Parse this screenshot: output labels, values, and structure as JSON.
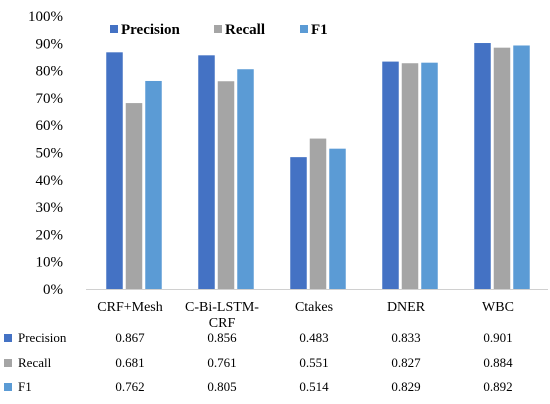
{
  "chart_data": {
    "type": "bar",
    "categories": [
      "CRF+Mesh",
      "C-Bi-LSTM-CRF",
      "Ctakes",
      "DNER",
      "WBC"
    ],
    "category_lines": [
      [
        "CRF+Mesh"
      ],
      [
        "C-Bi-LSTM-",
        "CRF"
      ],
      [
        "Ctakes"
      ],
      [
        "DNER"
      ],
      [
        "WBC"
      ]
    ],
    "series": [
      {
        "name": "Precision",
        "color": "#4472C4",
        "values": [
          0.867,
          0.856,
          0.483,
          0.833,
          0.901
        ]
      },
      {
        "name": "Recall",
        "color": "#A5A5A5",
        "values": [
          0.681,
          0.761,
          0.551,
          0.827,
          0.884
        ]
      },
      {
        "name": "F1",
        "color": "#5B9BD5",
        "values": [
          0.762,
          0.805,
          0.514,
          0.829,
          0.892
        ]
      }
    ],
    "ylim": [
      0,
      1
    ],
    "y_ticks": [
      "0%",
      "10%",
      "20%",
      "30%",
      "40%",
      "50%",
      "60%",
      "70%",
      "80%",
      "90%",
      "100%"
    ],
    "legend_position": "top",
    "grid": false,
    "data_table": {
      "rows": [
        {
          "label": "Precision",
          "cells": [
            "0.867",
            "0.856",
            "0.483",
            "0.833",
            "0.901"
          ]
        },
        {
          "label": "Recall",
          "cells": [
            "0.681",
            "0.761",
            "0.551",
            "0.827",
            "0.884"
          ]
        },
        {
          "label": "F1",
          "cells": [
            "0.762",
            "0.805",
            "0.514",
            "0.829",
            "0.892"
          ]
        }
      ]
    }
  }
}
